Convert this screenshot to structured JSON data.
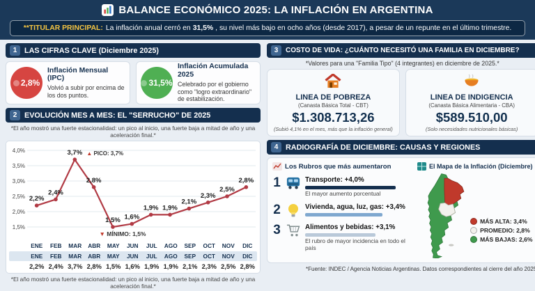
{
  "header": {
    "title": "BALANCE ECONÓMICO 2025: LA INFLACIÓN EN ARGENTINA"
  },
  "headline": {
    "label": "**TITULAR PRINCIPAL:",
    "before": "La inflación anual cerró en",
    "highlight": "31,5%",
    "after": ", su nivel más bajo en ocho años (desde 2017), a pesar de un repunte en el último trimestre."
  },
  "colors": {
    "navy": "#142f4e",
    "yellow_accent": "#f5c542",
    "line_red": "#b13a44",
    "up_red": "#d64541",
    "ok_green": "#4faf53"
  },
  "sections": {
    "s1": {
      "number": "1",
      "title": "LAS CIFRAS CLAVE (Diciembre 2025)",
      "cards": [
        {
          "value": "2,8%",
          "title": "Inflación Mensual (IPC)",
          "desc": "Volvió a subir por encima de los dos puntos.",
          "color": "#d64541"
        },
        {
          "value": "31,5%",
          "title": "Inflación Acumulada 2025",
          "desc": "Celebrado por el gobierno como \"logro extraordinario\" de estabilización.",
          "color": "#4faf53"
        }
      ]
    },
    "s2": {
      "number": "2",
      "title": "EVOLUCIÓN MES A MES: EL \"SERRUCHO\" DE 2025",
      "footnote": "*El año mostró una fuerte estacionalidad: un pico al inicio, una fuerte baja a mitad de año y una aceleración final.*"
    },
    "s3": {
      "number": "3",
      "title": "COSTO DE VIDA: ¿CUÁNTO NECESITÓ UNA FAMILIA EN DICIEMBRE?",
      "subtitle": "*Valores para una \"Familia Tipo\" (4 integrantes) en diciembre de 2025.*",
      "cards": [
        {
          "icon": "house-icon",
          "title": "LINEA DE POBREZA",
          "subtitle": "(Canasta Básica Total - CBT)",
          "value": "$1.308.713,26",
          "note": "(Subió 4,1% en el mes, más que la inflación general)"
        },
        {
          "icon": "soup-icon",
          "title": "LINEA DE INDIGENCIA",
          "subtitle": "(Canasta Básica Alimentaria - CBA)",
          "value": "$589.510,00",
          "note": "(Solo necesidades nutricionales básicas)"
        }
      ]
    },
    "s4": {
      "number": "4",
      "title": "RADIOGRAFÍA DE DICIEMBRE: CAUSAS Y REGIONES",
      "rubros": {
        "header": "Los Rubros que más aumentaron",
        "items": [
          {
            "rank": "1",
            "icon": "bus-icon",
            "label": "Transporte: +4,0%",
            "value": 4.0,
            "bar_color": "#142f4e",
            "desc": "El mayor aumento porcentual"
          },
          {
            "rank": "2",
            "icon": "bulb-icon",
            "label": "Vivienda, agua, luz, gas: +3,4%",
            "value": 3.4,
            "bar_color": "#7fa8cf",
            "desc": ""
          },
          {
            "rank": "3",
            "icon": "cart-icon",
            "label": "Alimentos y bebidas: +3,1%",
            "value": 3.1,
            "bar_color": "#b9c9d9",
            "desc": "El rubro de mayor incidencia en todo el país"
          }
        ]
      },
      "map": {
        "header": "El Mapa de la Inflación (Diciembre)",
        "legend": [
          {
            "color": "#c0392b",
            "label": "MÁS ALTA: 3,4%"
          },
          {
            "color": "#f2f1ec",
            "label": "PROMEDIO: 2,8%"
          },
          {
            "color": "#3f9a4d",
            "label": "MÁS BAJAS: 2,6%"
          }
        ]
      }
    }
  },
  "chart_data": {
    "type": "line",
    "title": "EVOLUCIÓN MES A MES: EL \"SERRUCHO\" DE 2025",
    "x": [
      "ENE",
      "FEB",
      "MAR",
      "ABR",
      "MAY",
      "JUN",
      "JUL",
      "AGO",
      "SEP",
      "OCT",
      "NOV",
      "DIC"
    ],
    "values": [
      2.2,
      2.4,
      3.7,
      2.8,
      1.5,
      1.6,
      1.9,
      1.9,
      2.1,
      2.3,
      2.5,
      2.8
    ],
    "point_labels": [
      "2,2%",
      "2,4%",
      "3,7%",
      "2,8%",
      "1,5%",
      "1,6%",
      "1,9%",
      "1,9%",
      "2,1%",
      "2,3%",
      "2,5%",
      "2,8%"
    ],
    "ylim": [
      1.5,
      4.0
    ],
    "yticks": [
      {
        "v": 1.5,
        "label": "1,5%"
      },
      {
        "v": 2.0,
        "label": "2,0%"
      },
      {
        "v": 2.5,
        "label": "2,5%"
      },
      {
        "v": 3.0,
        "label": "3,0%"
      },
      {
        "v": 3.5,
        "label": "3,5%"
      },
      {
        "v": 4.0,
        "label": "4,0%"
      }
    ],
    "grid": true,
    "line_color": "#b13a44",
    "annotations": {
      "peak": {
        "index": 2,
        "label": "PICO: 3,7%"
      },
      "min": {
        "index": 4,
        "label": "MÍNIMO: 1,5%"
      }
    }
  },
  "table": {
    "months": [
      "ENE",
      "FEB",
      "MAR",
      "ABR",
      "MAY",
      "JUN",
      "JUL",
      "AGO",
      "SEP",
      "OCT",
      "NOV",
      "DIC"
    ],
    "values": [
      "2,2%",
      "2,4%",
      "3,7%",
      "2,8%",
      "1,5%",
      "1,6%",
      "1,9%",
      "1,9%",
      "2,1%",
      "2,3%",
      "2,5%",
      "2,8%"
    ]
  },
  "footer": {
    "source": "*Fuente: INDEC / Agencia Noticias Argentinas. Datos correspondientes al cierre del año 2025."
  }
}
